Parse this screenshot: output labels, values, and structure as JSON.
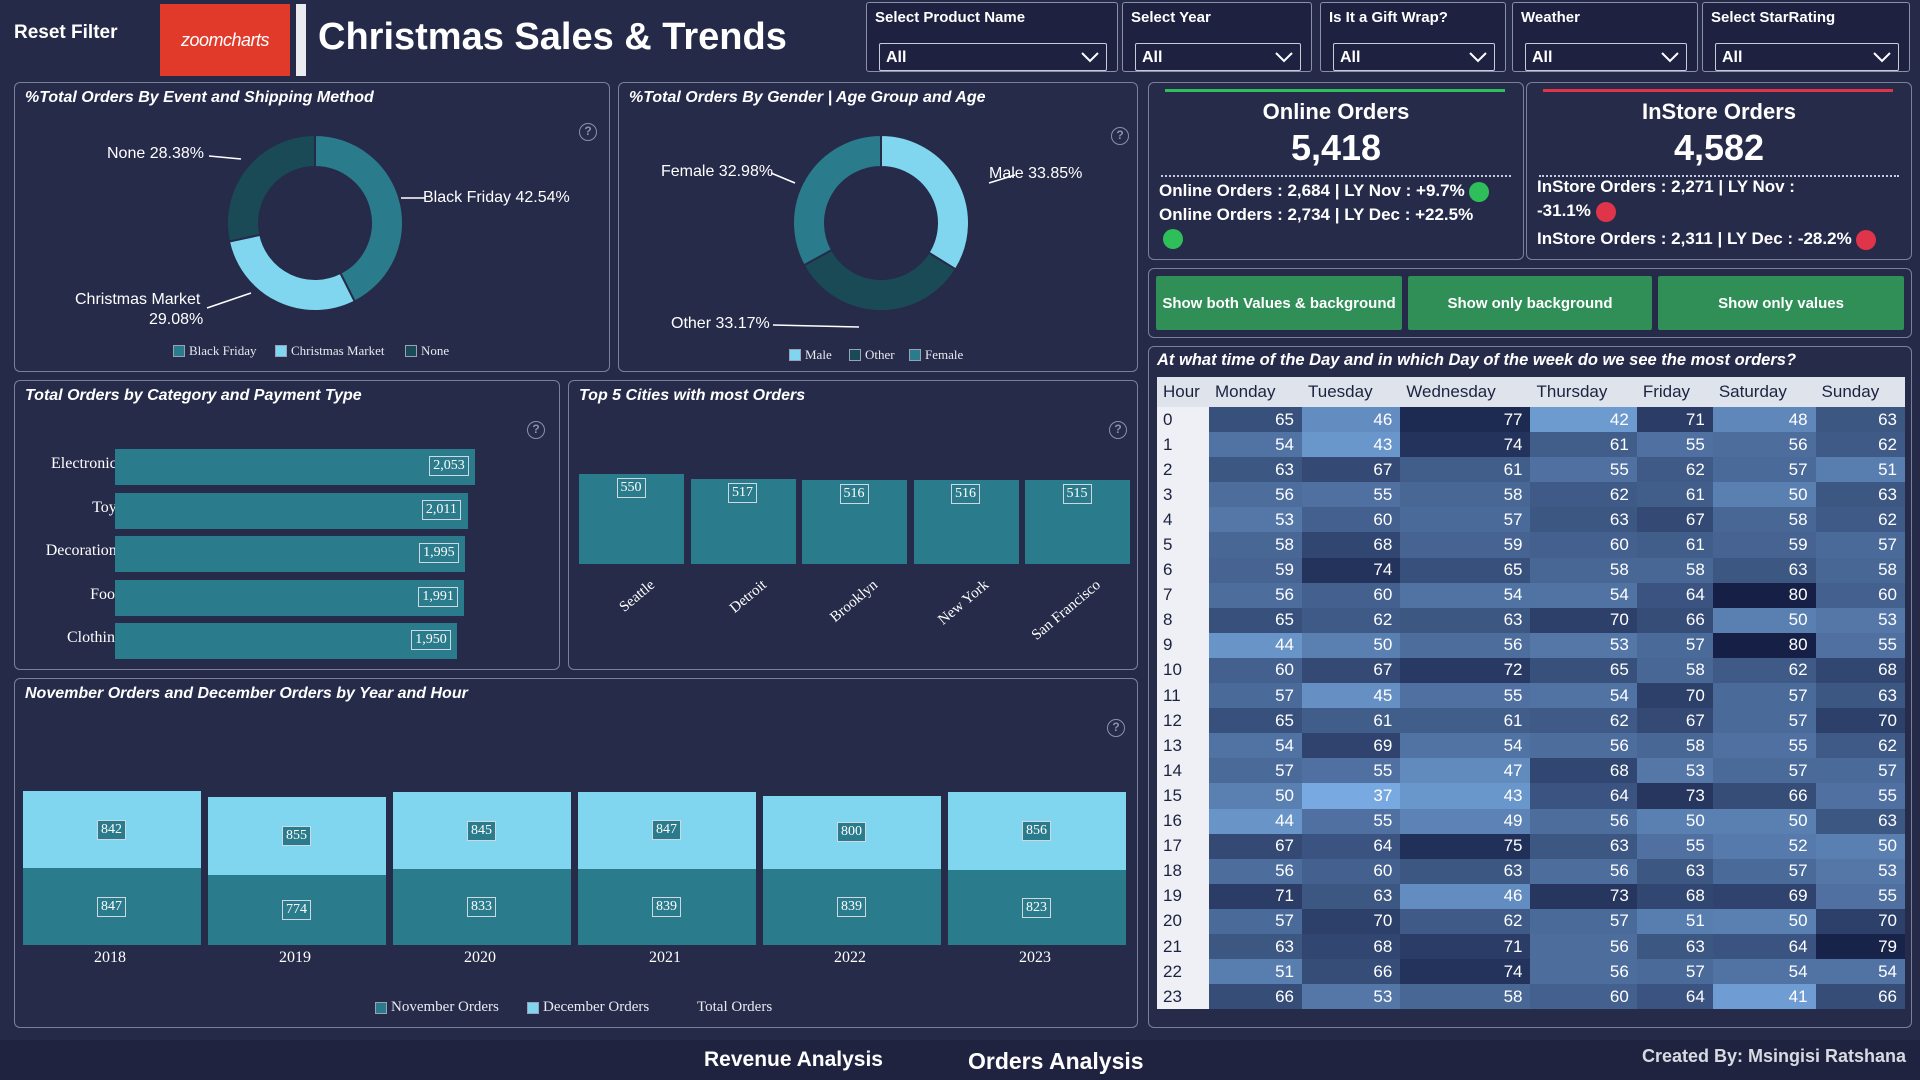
{
  "header": {
    "reset_label": "Reset Filter",
    "logo_text": "zoomcharts",
    "title": "Christmas Sales & Trends"
  },
  "slicers": [
    {
      "label": "Select Product Name",
      "value": "All"
    },
    {
      "label": "Select Year",
      "value": "All"
    },
    {
      "label": "Is It a Gift Wrap?",
      "value": "All"
    },
    {
      "label": "Weather",
      "value": "All"
    },
    {
      "label": "Select StarRating",
      "value": "All"
    }
  ],
  "event_chart": {
    "title": "%Total Orders By Event and Shipping Method",
    "labels": [
      "None 28.38%",
      "Black Friday 42.54%",
      "Christmas Market",
      "29.08%"
    ],
    "legend": [
      "Black Friday",
      "Christmas Market",
      "None"
    ],
    "chart_data": {
      "type": "pie",
      "categories": [
        "Black Friday",
        "Christmas Market",
        "None"
      ],
      "values": [
        42.54,
        29.08,
        28.38
      ]
    }
  },
  "gender_chart": {
    "title": "%Total Orders By Gender | Age Group and Age",
    "labels": [
      "Female 32.98%",
      "Male 33.85%",
      "Other 33.17%"
    ],
    "legend": [
      "Male",
      "Other",
      "Female"
    ],
    "chart_data": {
      "type": "pie",
      "categories": [
        "Male",
        "Other",
        "Female"
      ],
      "values": [
        33.85,
        33.17,
        32.98
      ]
    }
  },
  "online_kpi": {
    "title": "Online Orders",
    "value": "5,418",
    "line1": "Online Orders : 2,684 | LY Nov : +9.7%",
    "line2": "Online Orders : 2,734 | LY Dec : +22.5%",
    "accent": "#2fbf5a"
  },
  "instore_kpi": {
    "title": "InStore Orders",
    "value": "4,582",
    "line1a": "InStore Orders : 2,271 | LY Nov :",
    "line1b": "-31.1%",
    "line2": "InStore Orders : 2,311 | LY Dec : -28.2%",
    "accent": "#e0344a"
  },
  "buttons": [
    "Show both Values & background",
    "Show only background",
    "Show only values"
  ],
  "category_chart": {
    "title": "Total Orders by Category and Payment Type",
    "chart_data": {
      "type": "bar",
      "categories": [
        "Electronics",
        "Toys",
        "Decorations",
        "Food",
        "Clothing"
      ],
      "values": [
        2053,
        2011,
        1995,
        1991,
        1950
      ],
      "value_labels": [
        "2,053",
        "2,011",
        "1,995",
        "1,991",
        "1,950"
      ]
    }
  },
  "cities_chart": {
    "title": "Top 5 Cities with most Orders",
    "chart_data": {
      "type": "bar",
      "categories": [
        "Seattle",
        "Detroit",
        "Brooklyn",
        "New York",
        "San Francisco"
      ],
      "values": [
        550,
        517,
        516,
        516,
        515
      ]
    }
  },
  "year_chart": {
    "title": "November Orders and December Orders by Year and Hour",
    "legend": [
      "November Orders",
      "December Orders",
      "Total Orders"
    ],
    "chart_data": {
      "type": "bar",
      "categories": [
        "2018",
        "2019",
        "2020",
        "2021",
        "2022",
        "2023"
      ],
      "series": [
        {
          "name": "November Orders",
          "values": [
            847,
            774,
            833,
            839,
            839,
            823
          ]
        },
        {
          "name": "December Orders",
          "values": [
            842,
            855,
            845,
            847,
            800,
            856
          ]
        }
      ]
    }
  },
  "heatmap": {
    "title": "At what time of the Day and in which Day of the week do we see the most orders?",
    "columns": [
      "Hour",
      "Monday",
      "Tuesday",
      "Wednesday",
      "Thursday",
      "Friday",
      "Saturday",
      "Sunday"
    ],
    "rows": [
      [
        0,
        65,
        46,
        77,
        42,
        71,
        48,
        63
      ],
      [
        1,
        54,
        43,
        74,
        61,
        55,
        56,
        62
      ],
      [
        2,
        63,
        67,
        61,
        55,
        62,
        57,
        51
      ],
      [
        3,
        56,
        55,
        58,
        62,
        61,
        50,
        63
      ],
      [
        4,
        53,
        60,
        57,
        63,
        67,
        58,
        62
      ],
      [
        5,
        58,
        68,
        59,
        60,
        61,
        59,
        57
      ],
      [
        6,
        59,
        74,
        65,
        58,
        58,
        63,
        58
      ],
      [
        7,
        56,
        60,
        54,
        54,
        64,
        80,
        60
      ],
      [
        8,
        65,
        62,
        63,
        70,
        66,
        50,
        53
      ],
      [
        9,
        44,
        50,
        56,
        53,
        57,
        80,
        55
      ],
      [
        10,
        60,
        67,
        72,
        65,
        58,
        62,
        68
      ],
      [
        11,
        57,
        45,
        55,
        54,
        70,
        57,
        63
      ],
      [
        12,
        65,
        61,
        61,
        62,
        67,
        57,
        70
      ],
      [
        13,
        54,
        69,
        54,
        56,
        58,
        55,
        62
      ],
      [
        14,
        57,
        55,
        47,
        68,
        53,
        57,
        57
      ],
      [
        15,
        50,
        37,
        43,
        64,
        73,
        66,
        55
      ],
      [
        16,
        44,
        55,
        49,
        56,
        50,
        50,
        63
      ],
      [
        17,
        67,
        64,
        75,
        63,
        55,
        52,
        50
      ],
      [
        18,
        56,
        60,
        63,
        56,
        63,
        57,
        53
      ],
      [
        19,
        71,
        63,
        46,
        73,
        68,
        69,
        55
      ],
      [
        20,
        57,
        70,
        62,
        57,
        51,
        50,
        70
      ],
      [
        21,
        63,
        68,
        71,
        56,
        63,
        64,
        79
      ],
      [
        22,
        51,
        66,
        74,
        56,
        57,
        54,
        54
      ],
      [
        23,
        66,
        53,
        58,
        60,
        64,
        41,
        66
      ]
    ]
  },
  "footer": {
    "tabs": [
      "Revenue Analysis",
      "Orders Analysis"
    ],
    "credit": "Created By: Msingisi Ratshana"
  },
  "colors": {
    "teal_dark": "#1f5f6e",
    "teal": "#2a7b8c",
    "light_blue": "#7fd6ee",
    "background": "#252a48"
  }
}
